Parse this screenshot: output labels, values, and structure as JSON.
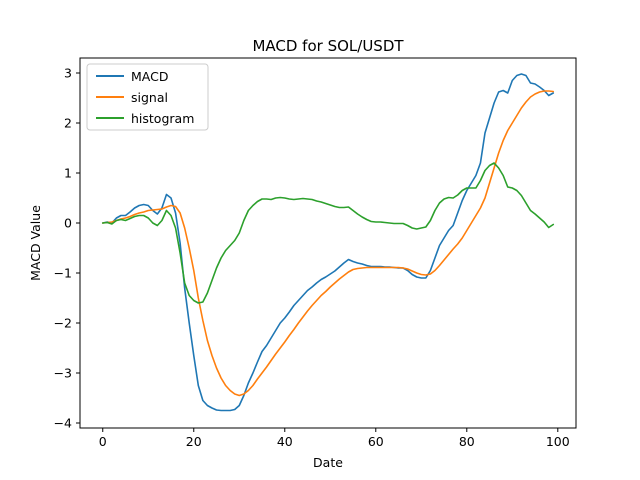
{
  "chart_data": {
    "type": "line",
    "title": "MACD for SOL/USDT",
    "xlabel": "Date",
    "ylabel": "MACD Value",
    "xlim": [
      -5,
      104
    ],
    "ylim": [
      -4.1,
      3.3
    ],
    "xticks": [
      0,
      20,
      40,
      60,
      80,
      100
    ],
    "yticks": [
      -4,
      -3,
      -2,
      -1,
      0,
      1,
      2,
      3
    ],
    "grid": false,
    "legend_position": "upper-left",
    "x": [
      0,
      1,
      2,
      3,
      4,
      5,
      6,
      7,
      8,
      9,
      10,
      11,
      12,
      13,
      14,
      15,
      16,
      17,
      18,
      19,
      20,
      21,
      22,
      23,
      24,
      25,
      26,
      27,
      28,
      29,
      30,
      31,
      32,
      33,
      34,
      35,
      36,
      37,
      38,
      39,
      40,
      41,
      42,
      43,
      44,
      45,
      46,
      47,
      48,
      49,
      50,
      51,
      52,
      53,
      54,
      55,
      56,
      57,
      58,
      59,
      60,
      61,
      62,
      63,
      64,
      65,
      66,
      67,
      68,
      69,
      70,
      71,
      72,
      73,
      74,
      75,
      76,
      77,
      78,
      79,
      80,
      81,
      82,
      83,
      84,
      85,
      86,
      87,
      88,
      89,
      90,
      91,
      92,
      93,
      94,
      95,
      96,
      97,
      98,
      99
    ],
    "series": [
      {
        "name": "MACD",
        "color": "#1f77b4",
        "values": [
          0.0,
          0.02,
          0.0,
          0.1,
          0.15,
          0.15,
          0.22,
          0.3,
          0.35,
          0.37,
          0.35,
          0.25,
          0.18,
          0.3,
          0.57,
          0.5,
          0.2,
          -0.4,
          -1.3,
          -2.0,
          -2.65,
          -3.25,
          -3.55,
          -3.65,
          -3.7,
          -3.74,
          -3.75,
          -3.75,
          -3.75,
          -3.73,
          -3.65,
          -3.45,
          -3.2,
          -3.0,
          -2.78,
          -2.57,
          -2.45,
          -2.3,
          -2.15,
          -2.0,
          -1.9,
          -1.78,
          -1.65,
          -1.55,
          -1.45,
          -1.35,
          -1.28,
          -1.2,
          -1.13,
          -1.08,
          -1.02,
          -0.96,
          -0.88,
          -0.8,
          -0.73,
          -0.77,
          -0.8,
          -0.82,
          -0.85,
          -0.87,
          -0.87,
          -0.87,
          -0.88,
          -0.88,
          -0.89,
          -0.9,
          -0.9,
          -0.95,
          -1.03,
          -1.08,
          -1.1,
          -1.1,
          -0.95,
          -0.7,
          -0.45,
          -0.3,
          -0.15,
          -0.05,
          0.2,
          0.45,
          0.65,
          0.8,
          0.95,
          1.2,
          1.8,
          2.1,
          2.4,
          2.62,
          2.65,
          2.6,
          2.85,
          2.95,
          2.98,
          2.95,
          2.8,
          2.78,
          2.72,
          2.65,
          2.55,
          2.6
        ]
      },
      {
        "name": "signal",
        "color": "#ff7f0e",
        "values": [
          0.0,
          0.01,
          0.02,
          0.05,
          0.08,
          0.1,
          0.13,
          0.17,
          0.2,
          0.22,
          0.25,
          0.26,
          0.27,
          0.28,
          0.32,
          0.35,
          0.33,
          0.2,
          -0.1,
          -0.5,
          -0.95,
          -1.5,
          -1.95,
          -2.35,
          -2.65,
          -2.9,
          -3.1,
          -3.25,
          -3.35,
          -3.42,
          -3.45,
          -3.42,
          -3.35,
          -3.25,
          -3.12,
          -3.0,
          -2.88,
          -2.75,
          -2.62,
          -2.5,
          -2.38,
          -2.25,
          -2.13,
          -2.0,
          -1.88,
          -1.76,
          -1.65,
          -1.55,
          -1.45,
          -1.37,
          -1.28,
          -1.2,
          -1.12,
          -1.05,
          -0.98,
          -0.93,
          -0.91,
          -0.9,
          -0.89,
          -0.89,
          -0.89,
          -0.89,
          -0.89,
          -0.89,
          -0.89,
          -0.89,
          -0.9,
          -0.92,
          -0.96,
          -1.0,
          -1.03,
          -1.04,
          -1.02,
          -0.95,
          -0.85,
          -0.74,
          -0.63,
          -0.52,
          -0.42,
          -0.3,
          -0.15,
          0.0,
          0.15,
          0.3,
          0.5,
          0.8,
          1.1,
          1.4,
          1.65,
          1.85,
          2.0,
          2.15,
          2.3,
          2.42,
          2.52,
          2.58,
          2.62,
          2.64,
          2.64,
          2.63
        ]
      },
      {
        "name": "histogram",
        "color": "#2ca02c",
        "values": [
          0.0,
          0.01,
          -0.02,
          0.05,
          0.07,
          0.05,
          0.09,
          0.13,
          0.15,
          0.15,
          0.1,
          0.0,
          -0.05,
          0.05,
          0.25,
          0.15,
          -0.1,
          -0.6,
          -1.2,
          -1.45,
          -1.55,
          -1.6,
          -1.58,
          -1.4,
          -1.15,
          -0.9,
          -0.7,
          -0.55,
          -0.45,
          -0.35,
          -0.2,
          0.05,
          0.25,
          0.35,
          0.43,
          0.48,
          0.48,
          0.47,
          0.5,
          0.51,
          0.5,
          0.48,
          0.47,
          0.48,
          0.49,
          0.48,
          0.47,
          0.44,
          0.42,
          0.39,
          0.36,
          0.33,
          0.31,
          0.31,
          0.32,
          0.25,
          0.18,
          0.12,
          0.07,
          0.03,
          0.02,
          0.02,
          0.01,
          0.0,
          -0.01,
          -0.01,
          -0.01,
          -0.05,
          -0.1,
          -0.12,
          -0.1,
          -0.08,
          0.05,
          0.25,
          0.4,
          0.48,
          0.51,
          0.5,
          0.56,
          0.65,
          0.7,
          0.7,
          0.7,
          0.85,
          1.05,
          1.15,
          1.2,
          1.1,
          0.95,
          0.72,
          0.7,
          0.65,
          0.55,
          0.4,
          0.25,
          0.18,
          0.1,
          0.02,
          -0.09,
          -0.03
        ]
      }
    ]
  }
}
